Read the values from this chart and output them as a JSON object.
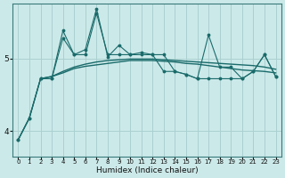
{
  "title": "",
  "xlabel": "Humidex (Indice chaleur)",
  "xlim": [
    -0.5,
    23.5
  ],
  "ylim": [
    3.65,
    5.75
  ],
  "yticks": [
    4,
    5
  ],
  "xticks": [
    0,
    1,
    2,
    3,
    4,
    5,
    6,
    7,
    8,
    9,
    10,
    11,
    12,
    13,
    14,
    15,
    16,
    17,
    18,
    19,
    20,
    21,
    22,
    23
  ],
  "bg_color": "#cce9e9",
  "grid_color": "#aad0d0",
  "line_color": "#1a6b6b",
  "zigzag1_x": [
    0,
    1,
    2,
    3,
    4,
    5,
    6,
    7,
    8,
    9,
    10,
    11,
    12,
    13,
    14,
    15,
    16,
    17,
    18,
    19,
    20,
    21,
    22,
    23
  ],
  "zigzag1_y": [
    3.88,
    4.18,
    4.72,
    4.72,
    5.28,
    5.05,
    5.05,
    5.62,
    5.05,
    5.05,
    5.05,
    5.05,
    5.05,
    5.05,
    4.82,
    4.78,
    4.72,
    4.72,
    4.72,
    4.72,
    4.72,
    4.82,
    5.05,
    4.75
  ],
  "zigzag2_x": [
    0,
    1,
    2,
    3,
    4,
    5,
    6,
    7,
    8,
    9,
    10,
    11,
    12,
    13,
    14,
    15,
    16,
    17,
    18,
    19,
    20,
    21,
    22,
    23
  ],
  "zigzag2_y": [
    3.88,
    4.18,
    4.72,
    4.72,
    5.38,
    5.05,
    5.12,
    5.68,
    5.02,
    5.18,
    5.05,
    5.08,
    5.05,
    4.82,
    4.82,
    4.78,
    4.72,
    5.32,
    4.88,
    4.88,
    4.72,
    4.82,
    5.05,
    4.75
  ],
  "trend1_x": [
    0,
    1,
    2,
    3,
    4,
    5,
    6,
    7,
    8,
    9,
    10,
    11,
    12,
    13,
    14,
    15,
    16,
    17,
    18,
    19,
    20,
    21,
    22,
    23
  ],
  "trend1_y": [
    3.88,
    4.18,
    4.72,
    4.75,
    4.8,
    4.86,
    4.89,
    4.91,
    4.93,
    4.95,
    4.97,
    4.97,
    4.97,
    4.96,
    4.95,
    4.93,
    4.92,
    4.9,
    4.88,
    4.86,
    4.84,
    4.83,
    4.82,
    4.8
  ],
  "trend2_x": [
    2,
    3,
    4,
    5,
    6,
    7,
    8,
    9,
    10,
    11,
    12,
    13,
    14,
    15,
    16,
    17,
    18,
    19,
    20,
    21,
    22,
    23
  ],
  "trend2_y": [
    4.72,
    4.75,
    4.82,
    4.88,
    4.92,
    4.95,
    4.97,
    4.98,
    4.99,
    4.99,
    4.99,
    4.98,
    4.97,
    4.96,
    4.95,
    4.94,
    4.93,
    4.92,
    4.91,
    4.9,
    4.88,
    4.85
  ]
}
